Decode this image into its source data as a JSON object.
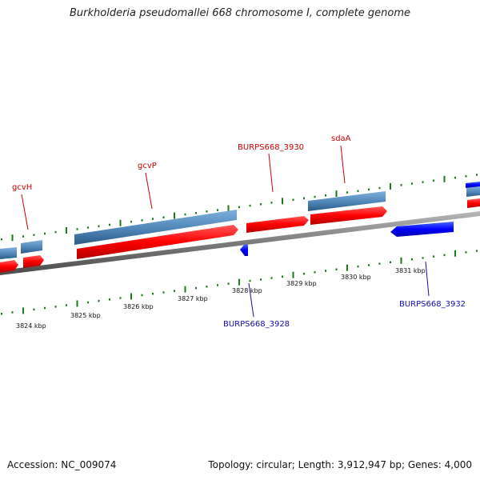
{
  "title": "Burkholderia pseudomallei 668 chromosome I, complete genome",
  "footer": {
    "accession": "Accession: NC_009074",
    "summary": "Topology: circular; Length: 3,912,947 bp; Genes: 4,000"
  },
  "colors": {
    "forward_gene": "#ff0000",
    "reverse_gene": "#0000ff",
    "cds_bar": "#4f86b8",
    "backbone": "#7a7a7a",
    "ticks": "#1a7a1a",
    "forward_label": "#cc0000",
    "reverse_label": "#1010aa"
  },
  "axis": {
    "unit": "kbp",
    "labels": [
      "3824 kbp",
      "3825 kbp",
      "3826 kbp",
      "3827 kbp",
      "3828 kbp",
      "3829 kbp",
      "3830 kbp",
      "3831 kbp"
    ]
  },
  "genes": [
    {
      "label": "gcvH",
      "strand": "forward"
    },
    {
      "label": "gcvP",
      "strand": "forward"
    },
    {
      "label": "BURPS668_3930",
      "strand": "forward"
    },
    {
      "label": "sdaA",
      "strand": "forward"
    },
    {
      "label": "BURPS668_3928",
      "strand": "reverse"
    },
    {
      "label": "BURPS668_3932",
      "strand": "reverse"
    }
  ]
}
